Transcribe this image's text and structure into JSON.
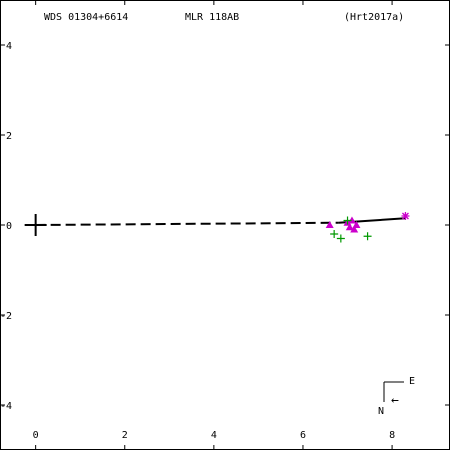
{
  "header": {
    "wds_id": "WDS 01304+6614",
    "discoverer": "MLR 118AB",
    "orbit_ref": "(Hrt2017a)"
  },
  "compass": {
    "east_label": "E",
    "north_label": "N",
    "arrow_glyph": "←"
  },
  "colors": {
    "axis": "#000000",
    "observation_magenta": "#cc00cc",
    "observation_green": "#009900"
  },
  "chart_data": {
    "type": "scatter",
    "title": "",
    "xlabel": "",
    "ylabel": "",
    "xlim": [
      -0.8,
      9.3
    ],
    "ylim": [
      -5.0,
      5.0
    ],
    "x_ticks": [
      0,
      2,
      4,
      6,
      8
    ],
    "y_ticks": [
      4,
      2,
      0,
      -2,
      -4
    ],
    "y_tick_labels": [
      "4",
      "2",
      "0",
      "-2",
      "-4"
    ],
    "grid": false,
    "primary_marker": {
      "x": 0,
      "y": 0,
      "symbol": "plus"
    },
    "orbit_dashed": [
      [
        0,
        0.0
      ],
      [
        6.8,
        0.05
      ]
    ],
    "orbit_solid": [
      [
        6.8,
        0.05
      ],
      [
        8.3,
        0.15
      ]
    ],
    "series": [
      {
        "symbol": "triangle",
        "color": "#cc00cc",
        "points": [
          [
            6.6,
            0.0
          ],
          [
            7.0,
            0.05
          ],
          [
            7.1,
            0.1
          ],
          [
            7.05,
            -0.05
          ],
          [
            7.2,
            0.0
          ],
          [
            7.15,
            -0.1
          ]
        ]
      },
      {
        "symbol": "plus",
        "color": "#009900",
        "points": [
          [
            6.7,
            -0.2
          ],
          [
            6.85,
            -0.3
          ],
          [
            7.0,
            0.1
          ],
          [
            7.45,
            -0.25
          ]
        ]
      },
      {
        "symbol": "asterisk",
        "color": "#cc00cc",
        "points": [
          [
            8.3,
            0.2
          ]
        ]
      }
    ]
  }
}
